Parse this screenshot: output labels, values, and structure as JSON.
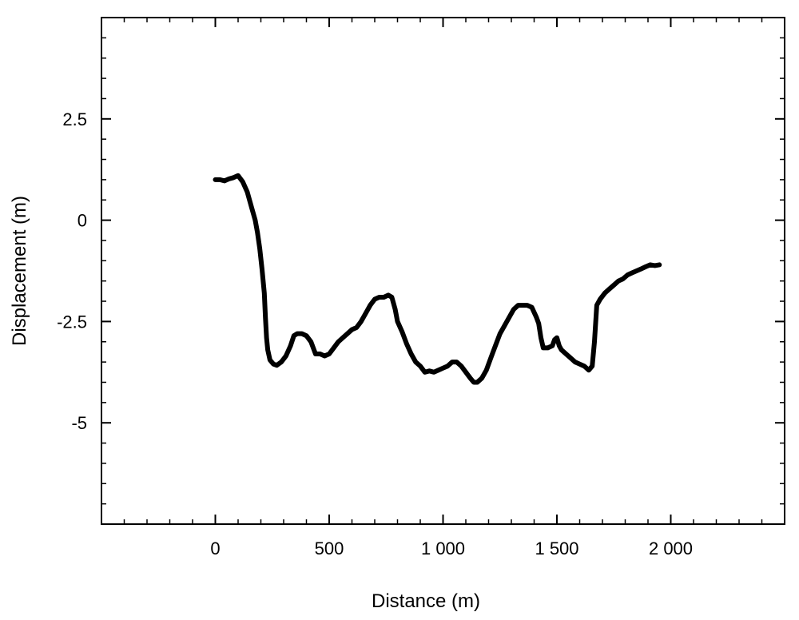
{
  "chart_data": {
    "type": "line",
    "title": "",
    "xlabel": "Distance (m)",
    "ylabel": "Displacement (m)",
    "xlim": [
      -500,
      2500
    ],
    "ylim": [
      -7.5,
      5
    ],
    "x_ticks": [
      0,
      500,
      1000,
      1500,
      2000
    ],
    "x_tick_labels": [
      "0",
      "500",
      "1 000",
      "1 500",
      "2 000"
    ],
    "y_ticks": [
      2.5,
      0,
      -2.5,
      -5
    ],
    "y_tick_labels": [
      "2.5",
      "0",
      "-2.5",
      "-5"
    ],
    "grid": false,
    "line_color": "#000000",
    "series": [
      {
        "x": [
          0,
          20,
          40,
          60,
          80,
          100,
          120,
          140,
          160,
          175,
          185,
          195,
          205,
          215,
          220,
          225,
          230,
          240,
          255,
          270,
          290,
          310,
          330,
          345,
          360,
          380,
          400,
          420,
          440,
          460,
          480,
          500,
          520,
          540,
          560,
          580,
          600,
          620,
          640,
          660,
          680,
          700,
          720,
          740,
          760,
          775,
          790,
          800,
          820,
          840,
          860,
          880,
          900,
          920,
          940,
          960,
          980,
          1000,
          1020,
          1040,
          1060,
          1080,
          1100,
          1120,
          1135,
          1150,
          1170,
          1190,
          1210,
          1230,
          1250,
          1270,
          1290,
          1310,
          1330,
          1350,
          1370,
          1390,
          1410,
          1420,
          1430,
          1440,
          1460,
          1480,
          1490,
          1500,
          1510,
          1520,
          1540,
          1560,
          1580,
          1600,
          1620,
          1640,
          1655,
          1665,
          1675,
          1690,
          1710,
          1730,
          1750,
          1770,
          1790,
          1810,
          1830,
          1850,
          1870,
          1890,
          1910,
          1930,
          1950
        ],
        "y": [
          1.0,
          1.0,
          0.97,
          1.02,
          1.05,
          1.1,
          0.95,
          0.7,
          0.3,
          0.0,
          -0.3,
          -0.7,
          -1.2,
          -1.8,
          -2.4,
          -2.9,
          -3.2,
          -3.45,
          -3.55,
          -3.58,
          -3.5,
          -3.35,
          -3.1,
          -2.85,
          -2.8,
          -2.8,
          -2.85,
          -3.0,
          -3.3,
          -3.3,
          -3.35,
          -3.3,
          -3.15,
          -3.0,
          -2.9,
          -2.8,
          -2.7,
          -2.65,
          -2.5,
          -2.3,
          -2.1,
          -1.95,
          -1.9,
          -1.9,
          -1.85,
          -1.9,
          -2.2,
          -2.5,
          -2.75,
          -3.05,
          -3.3,
          -3.5,
          -3.6,
          -3.75,
          -3.72,
          -3.75,
          -3.7,
          -3.65,
          -3.6,
          -3.5,
          -3.5,
          -3.6,
          -3.75,
          -3.9,
          -4.0,
          -4.0,
          -3.9,
          -3.7,
          -3.4,
          -3.1,
          -2.8,
          -2.6,
          -2.4,
          -2.2,
          -2.1,
          -2.1,
          -2.1,
          -2.15,
          -2.4,
          -2.55,
          -2.9,
          -3.15,
          -3.15,
          -3.1,
          -2.95,
          -2.9,
          -3.1,
          -3.2,
          -3.3,
          -3.4,
          -3.5,
          -3.55,
          -3.6,
          -3.7,
          -3.6,
          -3.0,
          -2.1,
          -1.95,
          -1.8,
          -1.7,
          -1.6,
          -1.5,
          -1.45,
          -1.35,
          -1.3,
          -1.25,
          -1.2,
          -1.15,
          -1.1,
          -1.12,
          -1.1
        ]
      }
    ]
  }
}
